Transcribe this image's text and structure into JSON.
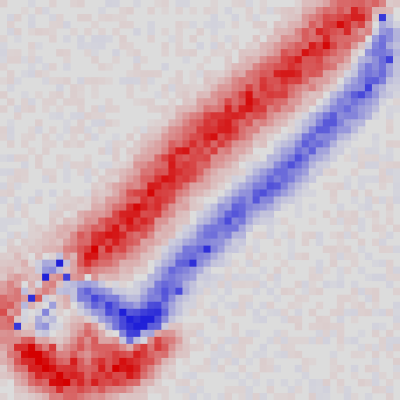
{
  "canvas": {
    "grid_cols": 57,
    "grid_rows": 57,
    "background": "#dcdcdc"
  },
  "palette": {
    "neutral": "#dcdcdc",
    "positive": "#d40000",
    "negative": "#2020d8"
  },
  "chart_data": {
    "type": "heatmap",
    "description_free": true,
    "strokes": [
      {
        "polarity": "positive",
        "points": [
          [
            52,
            1
          ],
          [
            47,
            4
          ],
          [
            43,
            8
          ],
          [
            38,
            12
          ],
          [
            34,
            15
          ],
          [
            29,
            19
          ],
          [
            26,
            22
          ],
          [
            23,
            25
          ],
          [
            20,
            29
          ],
          [
            17,
            32
          ],
          [
            13,
            35
          ],
          [
            9,
            38
          ],
          [
            5,
            41
          ],
          [
            2,
            44
          ]
        ],
        "peak": 0.95,
        "halo": 2.6
      },
      {
        "polarity": "negative",
        "points": [
          [
            54,
            2
          ],
          [
            53,
            10
          ],
          [
            50,
            14
          ],
          [
            47,
            17
          ],
          [
            43,
            21
          ],
          [
            38,
            26
          ],
          [
            33,
            30
          ],
          [
            29,
            34
          ],
          [
            26,
            37
          ],
          [
            23,
            41
          ],
          [
            21,
            45
          ],
          [
            18,
            47
          ]
        ],
        "peak": 0.72,
        "halo": 1.6
      },
      {
        "polarity": "negative",
        "points": [
          [
            9,
            37
          ],
          [
            6,
            38
          ],
          [
            4,
            41
          ],
          [
            3,
            44
          ],
          [
            3,
            47
          ],
          [
            5,
            45
          ],
          [
            7,
            41
          ],
          [
            10,
            40
          ],
          [
            13,
            42
          ],
          [
            16,
            44
          ],
          [
            18,
            46
          ],
          [
            21,
            45
          ]
        ],
        "peak": 0.85,
        "halo": 1.5
      },
      {
        "polarity": "positive",
        "points": [
          [
            3,
            49
          ],
          [
            5,
            52
          ],
          [
            8,
            54
          ],
          [
            11,
            54
          ],
          [
            15,
            53
          ],
          [
            18,
            52
          ],
          [
            20,
            50
          ],
          [
            22,
            48
          ]
        ],
        "peak": 0.9,
        "halo": 1.8
      },
      {
        "polarity": "positive",
        "points": [
          [
            4,
            50
          ],
          [
            6,
            51
          ],
          [
            9,
            52
          ],
          [
            11,
            49
          ],
          [
            12,
            47
          ],
          [
            14,
            50
          ],
          [
            16,
            48
          ],
          [
            17,
            51
          ]
        ],
        "peak": 0.55,
        "halo": 1.4
      }
    ],
    "hotspots": [
      {
        "cell": [
          46,
          6
        ],
        "polarity": "positive",
        "value": 0.95
      },
      {
        "cell": [
          44,
          6
        ],
        "polarity": "positive",
        "value": 0.85
      },
      {
        "cell": [
          42,
          8
        ],
        "polarity": "positive",
        "value": 0.85
      },
      {
        "cell": [
          54,
          2
        ],
        "polarity": "negative",
        "value": 0.85
      },
      {
        "cell": [
          55,
          8
        ],
        "polarity": "negative",
        "value": 0.8
      },
      {
        "cell": [
          52,
          12
        ],
        "polarity": "negative",
        "value": 0.8
      },
      {
        "cell": [
          51,
          13
        ],
        "polarity": "negative",
        "value": 0.75
      },
      {
        "cell": [
          23,
          25
        ],
        "polarity": "positive",
        "value": 0.9
      },
      {
        "cell": [
          21,
          26
        ],
        "polarity": "positive",
        "value": 0.85
      },
      {
        "cell": [
          19,
          29
        ],
        "polarity": "positive",
        "value": 0.95
      },
      {
        "cell": [
          15,
          33
        ],
        "polarity": "positive",
        "value": 0.9
      },
      {
        "cell": [
          13,
          35
        ],
        "polarity": "positive",
        "value": 1.0
      },
      {
        "cell": [
          29,
          35
        ],
        "polarity": "negative",
        "value": 0.9
      },
      {
        "cell": [
          27,
          37
        ],
        "polarity": "negative",
        "value": 0.9
      },
      {
        "cell": [
          25,
          41
        ],
        "polarity": "negative",
        "value": 0.75
      },
      {
        "cell": [
          8,
          37
        ],
        "polarity": "negative",
        "value": 1.0
      },
      {
        "cell": [
          6,
          39
        ],
        "polarity": "negative",
        "value": 1.0
      },
      {
        "cell": [
          4,
          42
        ],
        "polarity": "negative",
        "value": 0.9
      },
      {
        "cell": [
          2,
          46
        ],
        "polarity": "negative",
        "value": 0.85
      },
      {
        "cell": [
          9,
          39
        ],
        "polarity": "negative",
        "value": 0.8
      },
      {
        "cell": [
          17,
          44
        ],
        "polarity": "negative",
        "value": 1.0
      },
      {
        "cell": [
          15,
          43
        ],
        "polarity": "negative",
        "value": 0.8
      },
      {
        "cell": [
          5,
          50
        ],
        "polarity": "positive",
        "value": 1.0
      },
      {
        "cell": [
          6,
          52
        ],
        "polarity": "positive",
        "value": 1.0
      },
      {
        "cell": [
          8,
          54
        ],
        "polarity": "positive",
        "value": 0.95
      },
      {
        "cell": [
          10,
          51
        ],
        "polarity": "positive",
        "value": 0.85
      },
      {
        "cell": [
          11,
          54
        ],
        "polarity": "positive",
        "value": 0.8
      },
      {
        "cell": [
          7,
          49
        ],
        "polarity": "positive",
        "value": 0.7
      }
    ]
  }
}
